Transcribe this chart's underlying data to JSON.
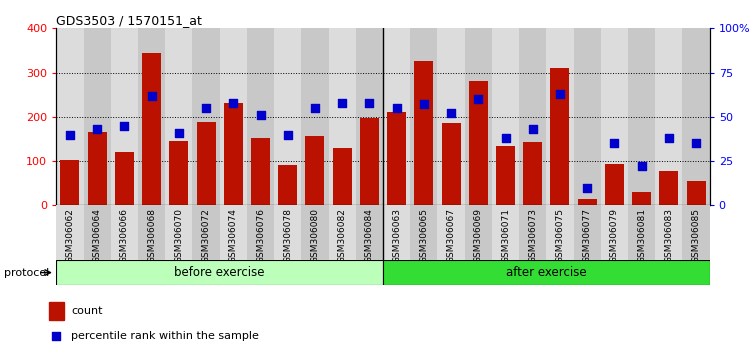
{
  "title": "GDS3503 / 1570151_at",
  "categories": [
    "GSM306062",
    "GSM306064",
    "GSM306066",
    "GSM306068",
    "GSM306070",
    "GSM306072",
    "GSM306074",
    "GSM306076",
    "GSM306078",
    "GSM306080",
    "GSM306082",
    "GSM306084",
    "GSM306063",
    "GSM306065",
    "GSM306067",
    "GSM306069",
    "GSM306071",
    "GSM306073",
    "GSM306075",
    "GSM306077",
    "GSM306079",
    "GSM306081",
    "GSM306083",
    "GSM306085"
  ],
  "counts": [
    103,
    165,
    120,
    345,
    145,
    188,
    232,
    153,
    90,
    157,
    130,
    198,
    210,
    327,
    185,
    282,
    133,
    143,
    310,
    15,
    93,
    30,
    77,
    55
  ],
  "percentile_ranks": [
    40,
    43,
    45,
    62,
    41,
    55,
    58,
    51,
    40,
    55,
    58,
    58,
    55,
    57,
    52,
    60,
    38,
    43,
    63,
    10,
    35,
    22,
    38,
    35
  ],
  "bar_color": "#BB1100",
  "marker_color": "#0000CC",
  "before_exercise_count": 12,
  "after_exercise_count": 12,
  "before_color": "#BBFFBB",
  "after_color": "#33DD33",
  "protocol_label": "protocol",
  "before_label": "before exercise",
  "after_label": "after exercise",
  "left_ylim": [
    0,
    400
  ],
  "right_ylim": [
    0,
    100
  ],
  "left_yticks": [
    0,
    100,
    200,
    300,
    400
  ],
  "right_yticks": [
    0,
    25,
    50,
    75,
    100
  ],
  "right_yticklabels": [
    "0",
    "25",
    "50",
    "75",
    "100%"
  ],
  "legend_count_label": "count",
  "legend_pct_label": "percentile rank within the sample",
  "bg_color": "#FFFFFF",
  "col_colors": [
    "#DCDCDC",
    "#C8C8C8"
  ]
}
